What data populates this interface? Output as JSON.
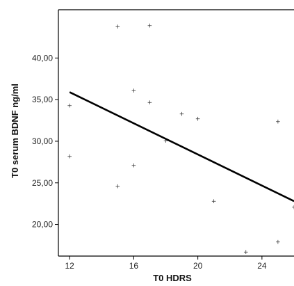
{
  "chart_data": {
    "type": "scatter",
    "title": "",
    "xlabel": "T0 HDRS",
    "ylabel": "T0 serum BDNF ng/ml",
    "xlim": [
      11.3,
      26
    ],
    "ylim": [
      16.2,
      45.8
    ],
    "x_ticks": [
      12,
      16,
      20,
      24
    ],
    "x_tick_labels": [
      "12",
      "16",
      "20",
      "24"
    ],
    "y_ticks": [
      20,
      25,
      30,
      35,
      40
    ],
    "y_tick_labels": [
      "20,00",
      "25,00",
      "30,00",
      "35,00",
      "40,00"
    ],
    "grid": false,
    "legend": "none",
    "marker_glyph": "+",
    "points": [
      {
        "x": 12,
        "y": 34.3
      },
      {
        "x": 12,
        "y": 28.2
      },
      {
        "x": 15,
        "y": 43.8
      },
      {
        "x": 15,
        "y": 24.6
      },
      {
        "x": 16,
        "y": 36.1
      },
      {
        "x": 16,
        "y": 27.1
      },
      {
        "x": 17,
        "y": 43.9
      },
      {
        "x": 17,
        "y": 34.7
      },
      {
        "x": 18,
        "y": 30.1
      },
      {
        "x": 19,
        "y": 33.3
      },
      {
        "x": 20,
        "y": 32.7
      },
      {
        "x": 21,
        "y": 22.8
      },
      {
        "x": 23,
        "y": 16.7
      },
      {
        "x": 25,
        "y": 32.4
      },
      {
        "x": 25,
        "y": 17.9
      },
      {
        "x": 26,
        "y": 22.1
      }
    ],
    "fit_line": {
      "x": [
        12,
        26
      ],
      "y": [
        35.9,
        22.8
      ]
    },
    "colors": {
      "points": "#333333",
      "line": "#000000",
      "axes": "#000000"
    }
  }
}
